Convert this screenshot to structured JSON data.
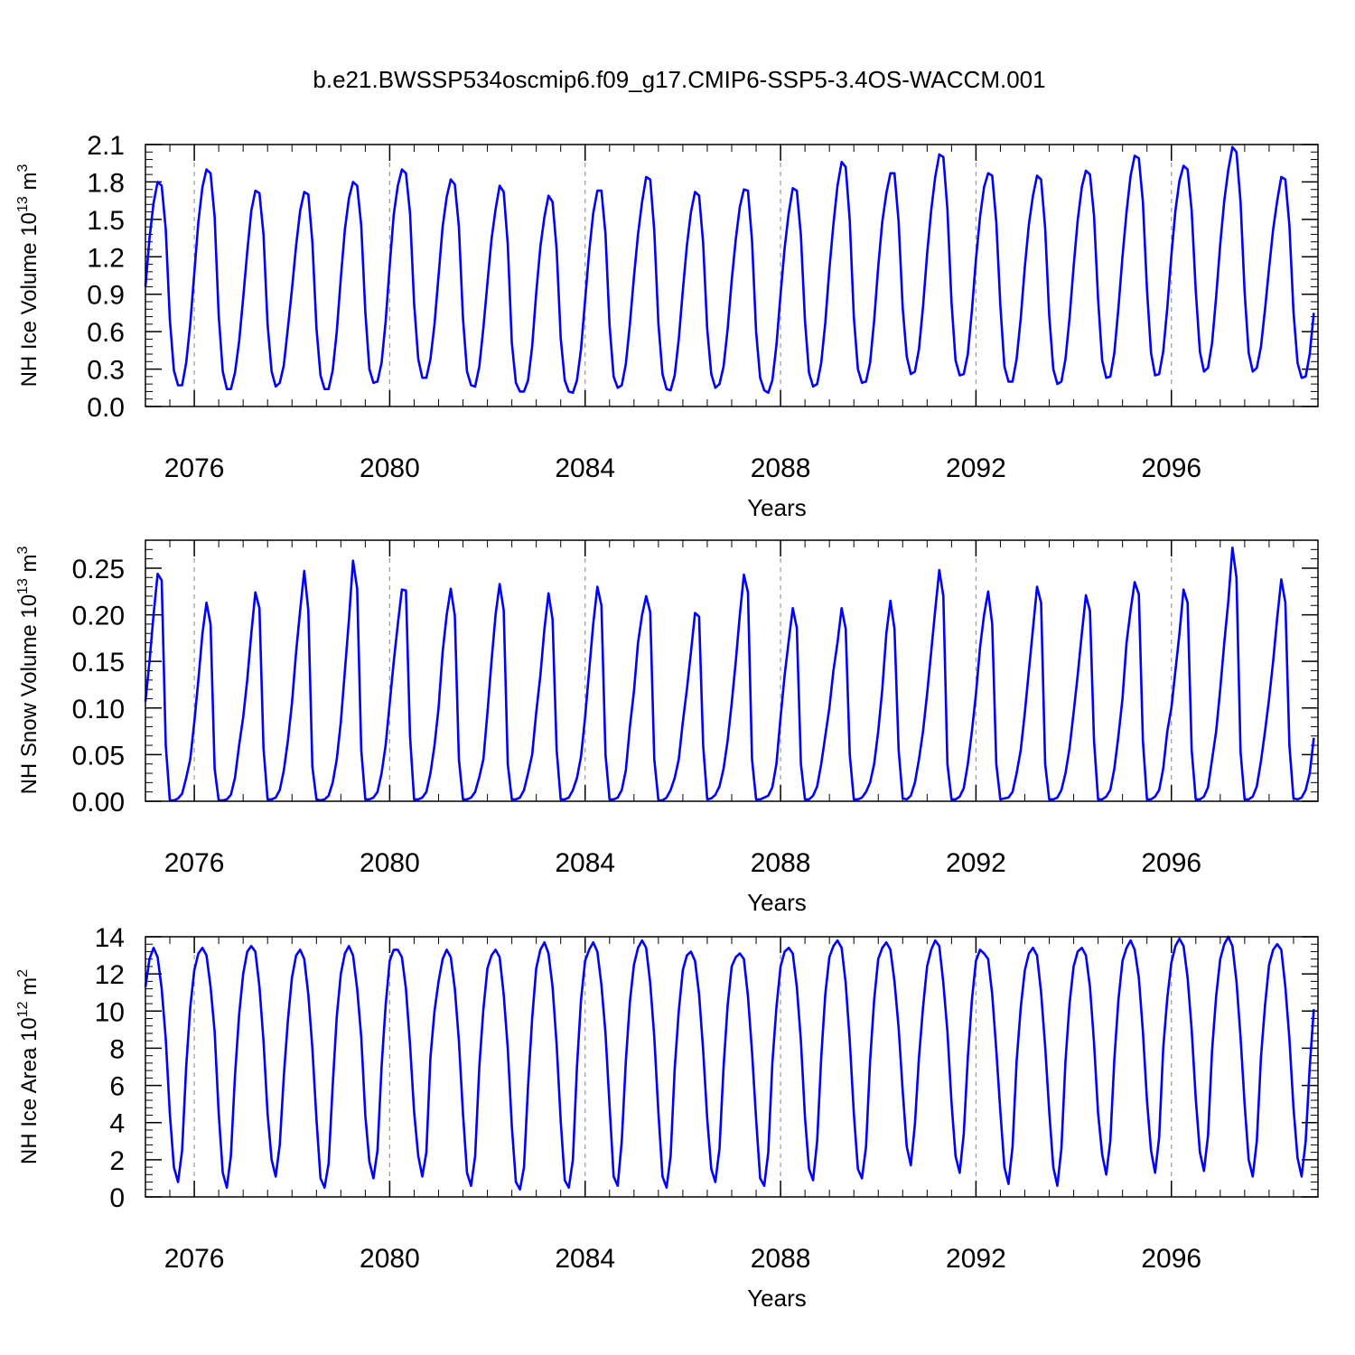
{
  "figure": {
    "title": "b.e21.BWSSP534oscmip6.f09_g17.CMIP6-SSP5-3.4OS-WACCM.001"
  },
  "colors": {
    "line": "#0000ff",
    "axis": "#000000",
    "refline": "#999999"
  },
  "chart_data": [
    {
      "type": "line",
      "title": "",
      "xlabel": "Years",
      "ylabel": {
        "base": "NH Ice Volume 10",
        "exp": "13",
        "unit": " m",
        "unit_exp": "3"
      },
      "xlim": [
        2075.0,
        2099.0
      ],
      "ylim": [
        0.0,
        2.1
      ],
      "yticks": [
        0.0,
        0.3,
        0.6,
        0.9,
        1.2,
        1.5,
        1.8,
        2.1
      ],
      "ytick_labels": [
        "0.0",
        "0.3",
        "0.6",
        "0.9",
        "1.2",
        "1.5",
        "1.8",
        "2.1"
      ],
      "xticks": [
        2076,
        2080,
        2084,
        2088,
        2092,
        2096
      ],
      "xtick_labels": [
        "2076",
        "2080",
        "2084",
        "2088",
        "2092",
        "2096"
      ],
      "grid": "dashed vertical lines at labelled years",
      "series": [
        {
          "start_year": 2075.0,
          "step_years": 0.08333,
          "values": [
            0.96,
            1.35,
            1.63,
            1.8,
            1.77,
            1.42,
            0.7,
            0.29,
            0.17,
            0.17,
            0.35,
            0.66,
            1.07,
            1.48,
            1.76,
            1.9,
            1.87,
            1.52,
            0.73,
            0.28,
            0.14,
            0.14,
            0.27,
            0.52,
            0.87,
            1.24,
            1.57,
            1.73,
            1.71,
            1.38,
            0.66,
            0.28,
            0.16,
            0.19,
            0.33,
            0.63,
            0.94,
            1.29,
            1.57,
            1.72,
            1.7,
            1.32,
            0.63,
            0.25,
            0.14,
            0.14,
            0.29,
            0.6,
            1.03,
            1.42,
            1.67,
            1.8,
            1.77,
            1.45,
            0.76,
            0.3,
            0.19,
            0.2,
            0.35,
            0.68,
            1.13,
            1.54,
            1.77,
            1.9,
            1.87,
            1.55,
            0.83,
            0.38,
            0.23,
            0.23,
            0.38,
            0.66,
            1.05,
            1.44,
            1.68,
            1.82,
            1.78,
            1.44,
            0.71,
            0.28,
            0.17,
            0.16,
            0.32,
            0.63,
            0.99,
            1.34,
            1.58,
            1.77,
            1.72,
            1.3,
            0.51,
            0.19,
            0.12,
            0.12,
            0.21,
            0.48,
            0.91,
            1.28,
            1.52,
            1.69,
            1.64,
            1.26,
            0.55,
            0.21,
            0.12,
            0.11,
            0.21,
            0.46,
            0.85,
            1.24,
            1.55,
            1.73,
            1.73,
            1.38,
            0.65,
            0.24,
            0.15,
            0.17,
            0.34,
            0.66,
            1.04,
            1.38,
            1.64,
            1.84,
            1.82,
            1.41,
            0.66,
            0.26,
            0.14,
            0.13,
            0.25,
            0.54,
            0.93,
            1.29,
            1.56,
            1.72,
            1.69,
            1.31,
            0.62,
            0.26,
            0.15,
            0.18,
            0.32,
            0.62,
            1.01,
            1.34,
            1.6,
            1.74,
            1.73,
            1.33,
            0.6,
            0.23,
            0.13,
            0.11,
            0.21,
            0.49,
            0.9,
            1.27,
            1.55,
            1.75,
            1.73,
            1.37,
            0.69,
            0.27,
            0.16,
            0.18,
            0.35,
            0.67,
            1.1,
            1.46,
            1.77,
            1.96,
            1.92,
            1.49,
            0.72,
            0.3,
            0.19,
            0.2,
            0.35,
            0.69,
            1.12,
            1.48,
            1.71,
            1.87,
            1.87,
            1.48,
            0.79,
            0.4,
            0.26,
            0.28,
            0.46,
            0.8,
            1.22,
            1.57,
            1.84,
            2.02,
            2.0,
            1.58,
            0.84,
            0.37,
            0.25,
            0.26,
            0.42,
            0.77,
            1.18,
            1.52,
            1.76,
            1.87,
            1.85,
            1.48,
            0.81,
            0.32,
            0.2,
            0.2,
            0.38,
            0.71,
            1.12,
            1.46,
            1.69,
            1.85,
            1.82,
            1.43,
            0.73,
            0.3,
            0.18,
            0.2,
            0.38,
            0.71,
            1.12,
            1.49,
            1.76,
            1.89,
            1.86,
            1.53,
            0.86,
            0.37,
            0.23,
            0.24,
            0.43,
            0.79,
            1.2,
            1.56,
            1.85,
            2.01,
            1.99,
            1.64,
            0.94,
            0.43,
            0.25,
            0.26,
            0.44,
            0.79,
            1.21,
            1.57,
            1.81,
            1.93,
            1.9,
            1.57,
            0.93,
            0.44,
            0.28,
            0.31,
            0.51,
            0.88,
            1.3,
            1.65,
            1.9,
            2.08,
            2.04,
            1.64,
            0.92,
            0.43,
            0.28,
            0.31,
            0.48,
            0.78,
            1.11,
            1.42,
            1.65,
            1.84,
            1.82,
            1.45,
            0.76,
            0.35,
            0.23,
            0.24,
            0.42,
            0.75
          ]
        }
      ]
    },
    {
      "type": "line",
      "title": "",
      "xlabel": "Years",
      "ylabel": {
        "base": "NH Snow Volume 10",
        "exp": "13",
        "unit": " m",
        "unit_exp": "3"
      },
      "xlim": [
        2075.0,
        2099.0
      ],
      "ylim": [
        0.0,
        0.28
      ],
      "yticks": [
        0.0,
        0.05,
        0.1,
        0.15,
        0.2,
        0.25
      ],
      "ytick_labels": [
        "0.00",
        "0.05",
        "0.10",
        "0.15",
        "0.20",
        "0.25"
      ],
      "xticks": [
        2076,
        2080,
        2084,
        2088,
        2092,
        2096
      ],
      "xtick_labels": [
        "2076",
        "2080",
        "2084",
        "2088",
        "2092",
        "2096"
      ],
      "grid": "dashed vertical lines at labelled years",
      "series": [
        {
          "start_year": 2075.0,
          "step_years": 0.08333,
          "values": [
            0.107,
            0.15,
            0.2,
            0.244,
            0.237,
            0.06,
            0.001,
            0.001,
            0.003,
            0.008,
            0.025,
            0.045,
            0.085,
            0.13,
            0.18,
            0.213,
            0.19,
            0.035,
            0.001,
            0.001,
            0.002,
            0.007,
            0.025,
            0.06,
            0.09,
            0.13,
            0.18,
            0.224,
            0.207,
            0.057,
            0.002,
            0.002,
            0.004,
            0.012,
            0.033,
            0.065,
            0.105,
            0.16,
            0.205,
            0.247,
            0.205,
            0.037,
            0.002,
            0.001,
            0.002,
            0.006,
            0.02,
            0.045,
            0.085,
            0.14,
            0.195,
            0.258,
            0.228,
            0.055,
            0.002,
            0.002,
            0.004,
            0.01,
            0.03,
            0.06,
            0.105,
            0.15,
            0.19,
            0.227,
            0.226,
            0.07,
            0.002,
            0.002,
            0.004,
            0.01,
            0.03,
            0.06,
            0.1,
            0.16,
            0.2,
            0.228,
            0.199,
            0.045,
            0.002,
            0.002,
            0.004,
            0.01,
            0.026,
            0.045,
            0.095,
            0.15,
            0.2,
            0.233,
            0.205,
            0.04,
            0.002,
            0.002,
            0.004,
            0.012,
            0.03,
            0.05,
            0.095,
            0.135,
            0.185,
            0.223,
            0.195,
            0.055,
            0.002,
            0.002,
            0.004,
            0.012,
            0.025,
            0.048,
            0.09,
            0.14,
            0.19,
            0.23,
            0.21,
            0.05,
            0.002,
            0.002,
            0.004,
            0.012,
            0.033,
            0.08,
            0.118,
            0.17,
            0.2,
            0.22,
            0.203,
            0.045,
            0.001,
            0.001,
            0.004,
            0.012,
            0.025,
            0.045,
            0.085,
            0.12,
            0.16,
            0.202,
            0.198,
            0.06,
            0.002,
            0.003,
            0.007,
            0.016,
            0.035,
            0.065,
            0.105,
            0.15,
            0.2,
            0.243,
            0.224,
            0.045,
            0.002,
            0.002,
            0.004,
            0.006,
            0.015,
            0.04,
            0.09,
            0.135,
            0.172,
            0.207,
            0.186,
            0.04,
            0.002,
            0.002,
            0.006,
            0.016,
            0.04,
            0.07,
            0.1,
            0.14,
            0.17,
            0.207,
            0.185,
            0.05,
            0.002,
            0.002,
            0.004,
            0.01,
            0.02,
            0.04,
            0.075,
            0.12,
            0.18,
            0.215,
            0.185,
            0.055,
            0.003,
            0.002,
            0.006,
            0.02,
            0.045,
            0.075,
            0.115,
            0.16,
            0.205,
            0.248,
            0.22,
            0.04,
            0.002,
            0.002,
            0.005,
            0.014,
            0.04,
            0.075,
            0.115,
            0.165,
            0.2,
            0.225,
            0.19,
            0.04,
            0.002,
            0.003,
            0.004,
            0.01,
            0.03,
            0.055,
            0.095,
            0.14,
            0.185,
            0.23,
            0.213,
            0.04,
            0.002,
            0.002,
            0.004,
            0.012,
            0.03,
            0.057,
            0.095,
            0.135,
            0.18,
            0.221,
            0.204,
            0.065,
            0.002,
            0.002,
            0.005,
            0.012,
            0.035,
            0.07,
            0.11,
            0.17,
            0.205,
            0.235,
            0.222,
            0.065,
            0.002,
            0.002,
            0.005,
            0.012,
            0.035,
            0.075,
            0.1,
            0.14,
            0.18,
            0.227,
            0.213,
            0.055,
            0.002,
            0.002,
            0.005,
            0.015,
            0.045,
            0.075,
            0.12,
            0.17,
            0.215,
            0.272,
            0.24,
            0.053,
            0.002,
            0.002,
            0.005,
            0.016,
            0.043,
            0.075,
            0.11,
            0.15,
            0.197,
            0.238,
            0.213,
            0.06,
            0.003,
            0.002,
            0.004,
            0.012,
            0.03,
            0.068
          ]
        }
      ]
    },
    {
      "type": "line",
      "title": "",
      "xlabel": "Years",
      "ylabel": {
        "base": "NH Ice Area 10",
        "exp": "12",
        "unit": " m",
        "unit_exp": "2"
      },
      "xlim": [
        2075.0,
        2099.0
      ],
      "ylim": [
        0,
        14
      ],
      "yticks": [
        0,
        2,
        4,
        6,
        8,
        10,
        12,
        14
      ],
      "ytick_labels": [
        "0",
        "2",
        "4",
        "6",
        "8",
        "10",
        "12",
        "14"
      ],
      "xticks": [
        2076,
        2080,
        2084,
        2088,
        2092,
        2096
      ],
      "xtick_labels": [
        "2076",
        "2080",
        "2084",
        "2088",
        "2092",
        "2096"
      ],
      "grid": "dashed vertical lines at labelled years",
      "series": [
        {
          "start_year": 2075.0,
          "step_years": 0.08333,
          "values": [
            11.3,
            12.8,
            13.4,
            12.9,
            11.2,
            8.5,
            4.5,
            1.6,
            0.8,
            2.5,
            7.0,
            10.2,
            12.2,
            13.1,
            13.4,
            13.0,
            11.3,
            8.9,
            4.5,
            1.3,
            0.5,
            2.2,
            6.5,
            9.8,
            12.0,
            13.2,
            13.5,
            13.2,
            11.3,
            8.4,
            4.5,
            2.0,
            1.1,
            2.8,
            6.5,
            9.5,
            11.8,
            13.0,
            13.3,
            12.8,
            10.9,
            8.0,
            4.2,
            1.0,
            0.5,
            1.8,
            6.0,
            9.7,
            12.0,
            13.1,
            13.5,
            13.0,
            11.2,
            8.6,
            4.4,
            1.9,
            1.0,
            2.5,
            7.0,
            10.3,
            12.7,
            13.3,
            13.3,
            12.9,
            11.2,
            8.2,
            4.6,
            2.2,
            1.1,
            2.4,
            7.5,
            10.0,
            11.6,
            12.8,
            13.3,
            12.9,
            11.2,
            8.4,
            4.5,
            1.3,
            0.6,
            2.2,
            7.0,
            10.1,
            12.3,
            13.0,
            13.3,
            12.9,
            10.9,
            8.0,
            3.8,
            0.8,
            0.4,
            1.6,
            6.0,
            9.6,
            12.3,
            13.3,
            13.7,
            13.1,
            11.3,
            8.2,
            4.1,
            0.9,
            0.5,
            2.0,
            7.0,
            10.6,
            12.7,
            13.3,
            13.7,
            13.2,
            11.4,
            8.8,
            4.9,
            1.1,
            0.6,
            3.0,
            7.3,
            10.5,
            12.5,
            13.4,
            13.8,
            13.4,
            11.5,
            8.6,
            4.5,
            1.1,
            0.5,
            2.2,
            6.9,
            10.0,
            12.2,
            13.0,
            13.2,
            12.7,
            10.9,
            7.9,
            4.2,
            1.5,
            0.8,
            2.6,
            7.0,
            10.3,
            12.4,
            12.9,
            13.1,
            12.8,
            10.8,
            7.8,
            4.2,
            1.0,
            0.6,
            2.4,
            7.2,
            10.2,
            12.4,
            13.2,
            13.4,
            13.1,
            11.3,
            8.4,
            4.3,
            1.5,
            0.9,
            3.0,
            7.5,
            10.9,
            12.9,
            13.5,
            13.8,
            13.4,
            11.5,
            8.4,
            4.5,
            1.5,
            1.0,
            2.7,
            7.3,
            10.6,
            12.8,
            13.4,
            13.7,
            13.3,
            11.6,
            9.1,
            5.7,
            2.7,
            1.7,
            3.9,
            7.5,
            10.2,
            12.4,
            13.3,
            13.8,
            13.5,
            11.5,
            8.9,
            5.1,
            2.2,
            1.3,
            3.4,
            7.5,
            10.6,
            12.7,
            13.3,
            13.1,
            12.8,
            10.9,
            7.9,
            4.6,
            1.6,
            0.7,
            2.7,
            7.3,
            10.2,
            12.2,
            13.1,
            13.4,
            13.0,
            11.0,
            8.1,
            4.6,
            1.6,
            0.6,
            2.6,
            7.3,
            10.4,
            12.4,
            13.2,
            13.4,
            13.0,
            11.3,
            8.3,
            4.5,
            2.3,
            1.2,
            3.0,
            7.4,
            10.6,
            12.7,
            13.4,
            13.8,
            13.3,
            11.8,
            8.9,
            5.2,
            2.5,
            1.3,
            3.2,
            8.0,
            10.7,
            12.6,
            13.5,
            13.9,
            13.5,
            11.8,
            9.0,
            5.3,
            2.4,
            1.4,
            3.3,
            7.9,
            10.8,
            12.8,
            13.6,
            14.0,
            13.5,
            11.6,
            8.6,
            5.0,
            2.0,
            1.1,
            3.0,
            7.5,
            10.3,
            12.5,
            13.3,
            13.6,
            13.3,
            11.3,
            8.5,
            4.8,
            2.1,
            1.1,
            3.0,
            7.0,
            10.1
          ]
        }
      ]
    }
  ]
}
